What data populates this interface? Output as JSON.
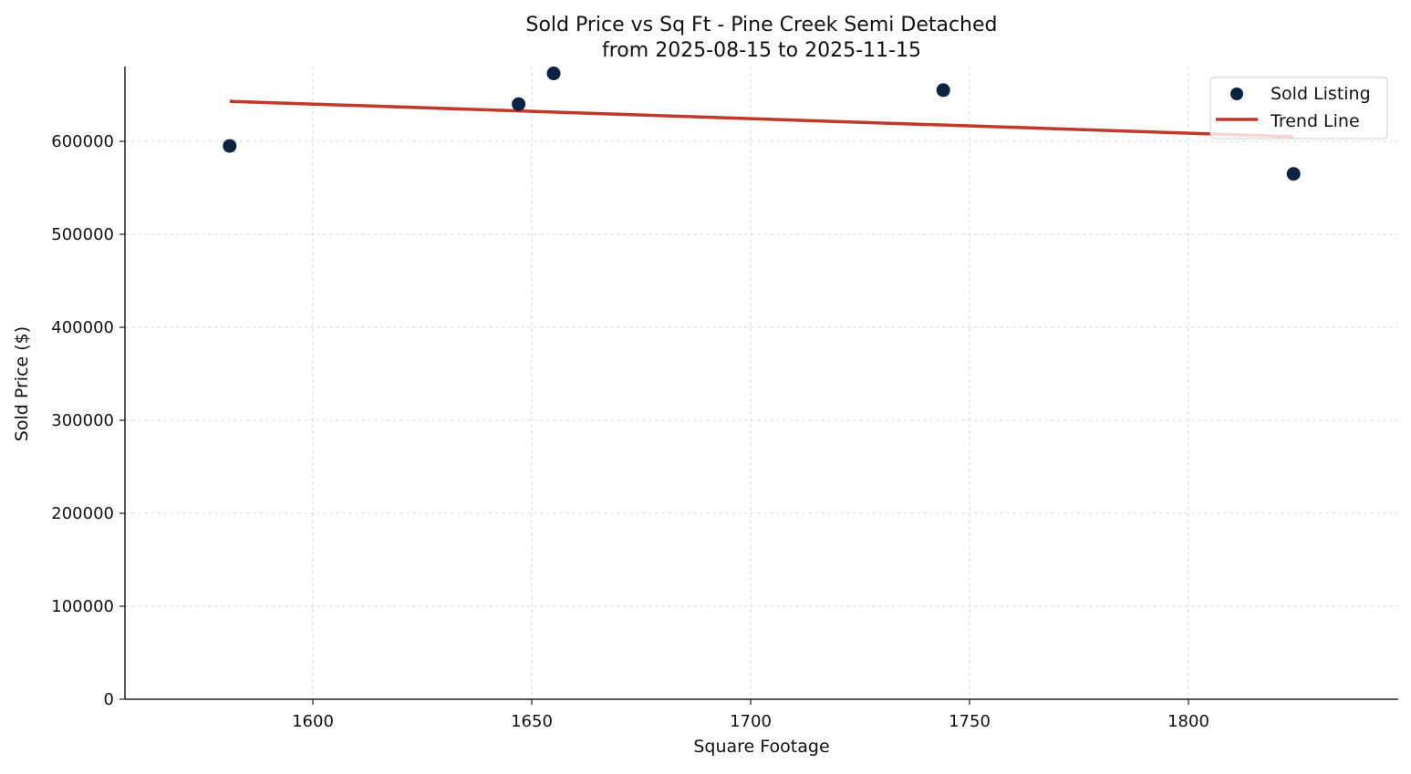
{
  "chart_data": {
    "type": "scatter",
    "title": "Sold Price vs Sq Ft - Pine Creek Semi Detached",
    "subtitle": "from 2025-08-15 to 2025-11-15",
    "xlabel": "Square Footage",
    "ylabel": "Sold Price ($)",
    "xlim": [
      1557,
      1848
    ],
    "ylim": [
      0,
      680000
    ],
    "x_ticks": [
      1600,
      1650,
      1700,
      1750,
      1800
    ],
    "y_ticks": [
      0,
      100000,
      200000,
      300000,
      400000,
      500000,
      600000
    ],
    "grid": true,
    "legend_position": "upper right",
    "series": [
      {
        "name": "Sold Listing",
        "type": "scatter",
        "color": "#0b2341",
        "points": [
          {
            "x": 1581,
            "y": 595000
          },
          {
            "x": 1647,
            "y": 640000
          },
          {
            "x": 1655,
            "y": 673000
          },
          {
            "x": 1744,
            "y": 655000
          },
          {
            "x": 1824,
            "y": 565000
          }
        ]
      },
      {
        "name": "Trend Line",
        "type": "line",
        "color": "#c0392b",
        "points": [
          {
            "x": 1581,
            "y": 643000
          },
          {
            "x": 1824,
            "y": 605000
          }
        ]
      }
    ]
  }
}
